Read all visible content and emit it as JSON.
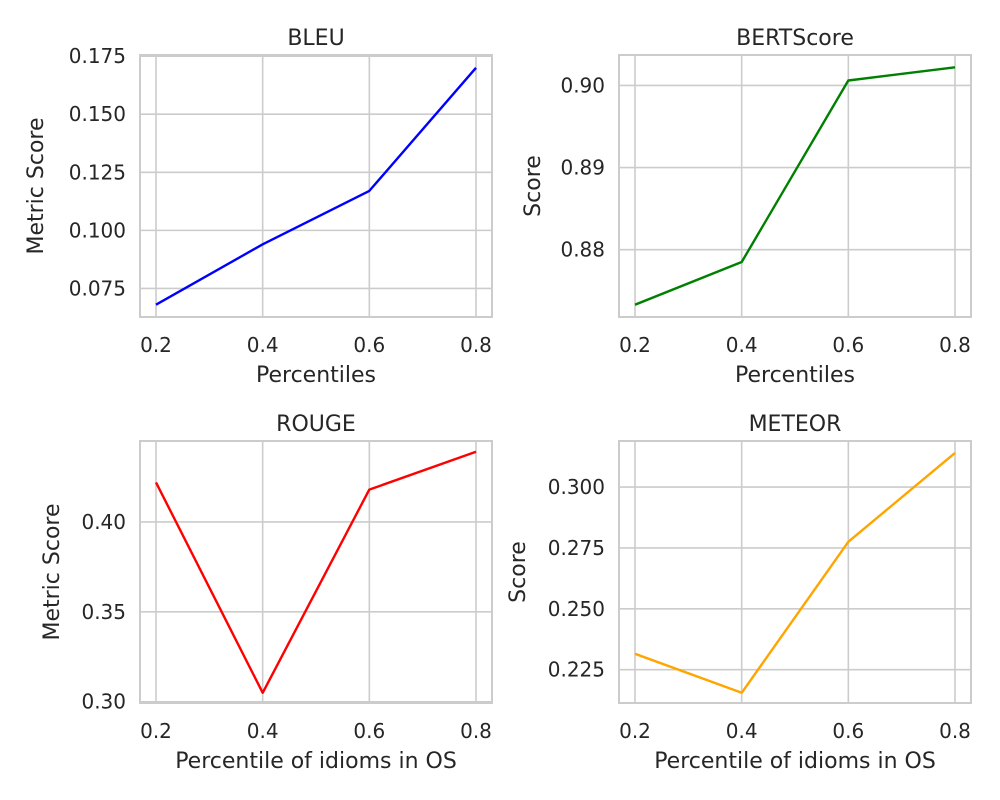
{
  "chart_data": [
    {
      "type": "line",
      "title": "BLEU",
      "xlabel": "Percentiles",
      "ylabel": "Metric Score",
      "x": [
        0.2,
        0.4,
        0.6,
        0.8
      ],
      "xticks": [
        "0.2",
        "0.4",
        "0.6",
        "0.8"
      ],
      "xlim": [
        0.17,
        0.83
      ],
      "yticks": [
        "0.075",
        "0.100",
        "0.125",
        "0.150",
        "0.175"
      ],
      "ytick_values": [
        0.075,
        0.1,
        0.125,
        0.15,
        0.175
      ],
      "ylim": [
        0.0627,
        0.1755
      ],
      "grid": true,
      "series": [
        {
          "values": [
            0.068,
            0.094,
            0.117,
            0.17
          ],
          "color": "#0000ff"
        }
      ]
    },
    {
      "type": "line",
      "title": "BERTScore",
      "xlabel": "Percentiles",
      "ylabel": "Score",
      "x": [
        0.2,
        0.4,
        0.6,
        0.8
      ],
      "xticks": [
        "0.2",
        "0.4",
        "0.6",
        "0.8"
      ],
      "xlim": [
        0.17,
        0.83
      ],
      "yticks": [
        "0.88",
        "0.89",
        "0.90"
      ],
      "ytick_values": [
        0.88,
        0.89,
        0.9
      ],
      "ylim": [
        0.8718,
        0.9037
      ],
      "grid": true,
      "series": [
        {
          "values": [
            0.8733,
            0.8785,
            0.9006,
            0.9022
          ],
          "color": "#008000"
        }
      ]
    },
    {
      "type": "line",
      "title": "ROUGE",
      "xlabel": "Percentile of idioms in OS",
      "ylabel": "Metric Score",
      "x": [
        0.2,
        0.4,
        0.6,
        0.8
      ],
      "xticks": [
        "0.2",
        "0.4",
        "0.6",
        "0.8"
      ],
      "xlim": [
        0.17,
        0.83
      ],
      "yticks": [
        "0.30",
        "0.35",
        "0.40"
      ],
      "ytick_values": [
        0.3,
        0.35,
        0.4
      ],
      "ylim": [
        0.2993,
        0.445
      ],
      "grid": true,
      "series": [
        {
          "values": [
            0.422,
            0.305,
            0.418,
            0.439
          ],
          "color": "#ff0000"
        }
      ]
    },
    {
      "type": "line",
      "title": "METEOR",
      "xlabel": "Percentile of idioms in OS",
      "ylabel": "Score",
      "x": [
        0.2,
        0.4,
        0.6,
        0.8
      ],
      "xticks": [
        "0.2",
        "0.4",
        "0.6",
        "0.8"
      ],
      "xlim": [
        0.17,
        0.83
      ],
      "yticks": [
        "0.225",
        "0.250",
        "0.275",
        "0.300"
      ],
      "ytick_values": [
        0.225,
        0.25,
        0.275,
        0.3
      ],
      "ylim": [
        0.2113,
        0.3189
      ],
      "grid": true,
      "series": [
        {
          "values": [
            0.2315,
            0.2155,
            0.2775,
            0.314
          ],
          "color": "#ffa500"
        }
      ]
    }
  ]
}
